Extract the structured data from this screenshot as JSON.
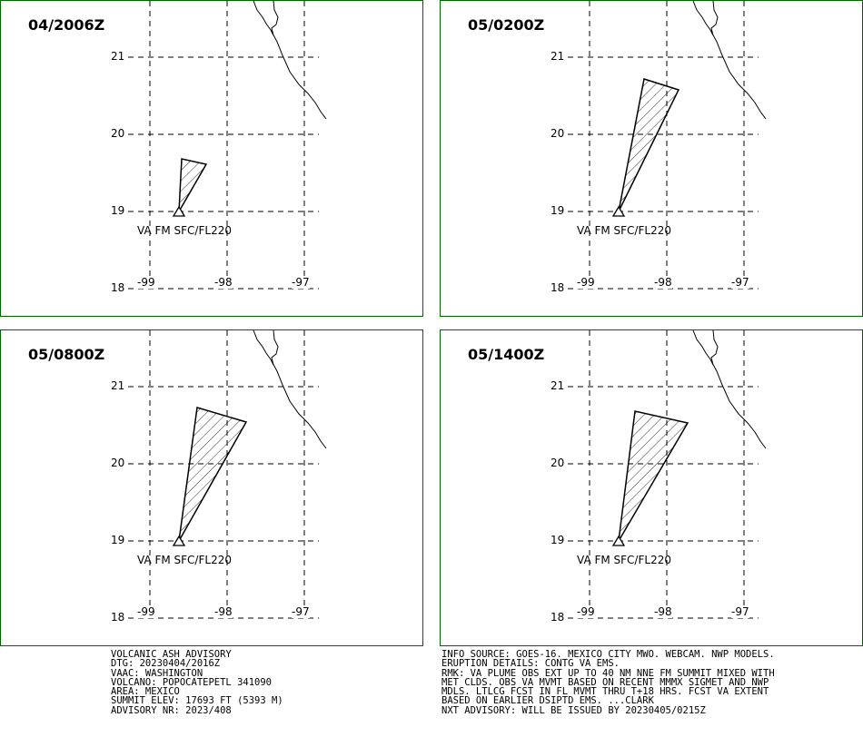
{
  "panels": [
    {
      "title": "04/2006Z",
      "label": "VA FM SFC/FL220"
    },
    {
      "title": "05/0200Z",
      "label": "VA FM SFC/FL220"
    },
    {
      "title": "05/0800Z",
      "label": "VA FM SFC/FL220"
    },
    {
      "title": "05/1400Z",
      "label": "VA FM SFC/FL220"
    }
  ],
  "axes": {
    "lat_labels": [
      "21",
      "20",
      "19",
      "18"
    ],
    "lon_labels": [
      "-99",
      "-98",
      "-97"
    ]
  },
  "colors": {
    "panel_border": "#006400",
    "lines": "#000000"
  },
  "advisory_left": [
    "VOLCANIC ASH ADVISORY",
    "DTG: 20230404/2016Z",
    "VAAC: WASHINGTON",
    "VOLCANO: POPOCATEPETL 341090",
    "AREA: MEXICO",
    "SUMMIT ELEV: 17693 FT (5393 M)",
    "ADVISORY NR: 2023/408"
  ],
  "advisory_right": [
    "INFO SOURCE: GOES-16. MEXICO CITY MWO. WEBCAM. NWP MODELS.",
    "ERUPTION DETAILS: CONTG VA EMS.",
    "RMK: VA PLUME OBS EXT UP TO 40 NM NNE FM SUMMIT MIXED WITH",
    "MET CLDS. OBS VA MVMT BASED ON RECENT MMMX SIGMET AND NWP",
    "MDLS. LTLCG FCST IN FL MVMT THRU T+18 HRS. FCST VA EXTENT",
    "BASED ON EARLIER DSIPTD EMS. ...CLARK",
    "NXT ADVISORY: WILL BE ISSUED BY 20230405/0215Z"
  ]
}
